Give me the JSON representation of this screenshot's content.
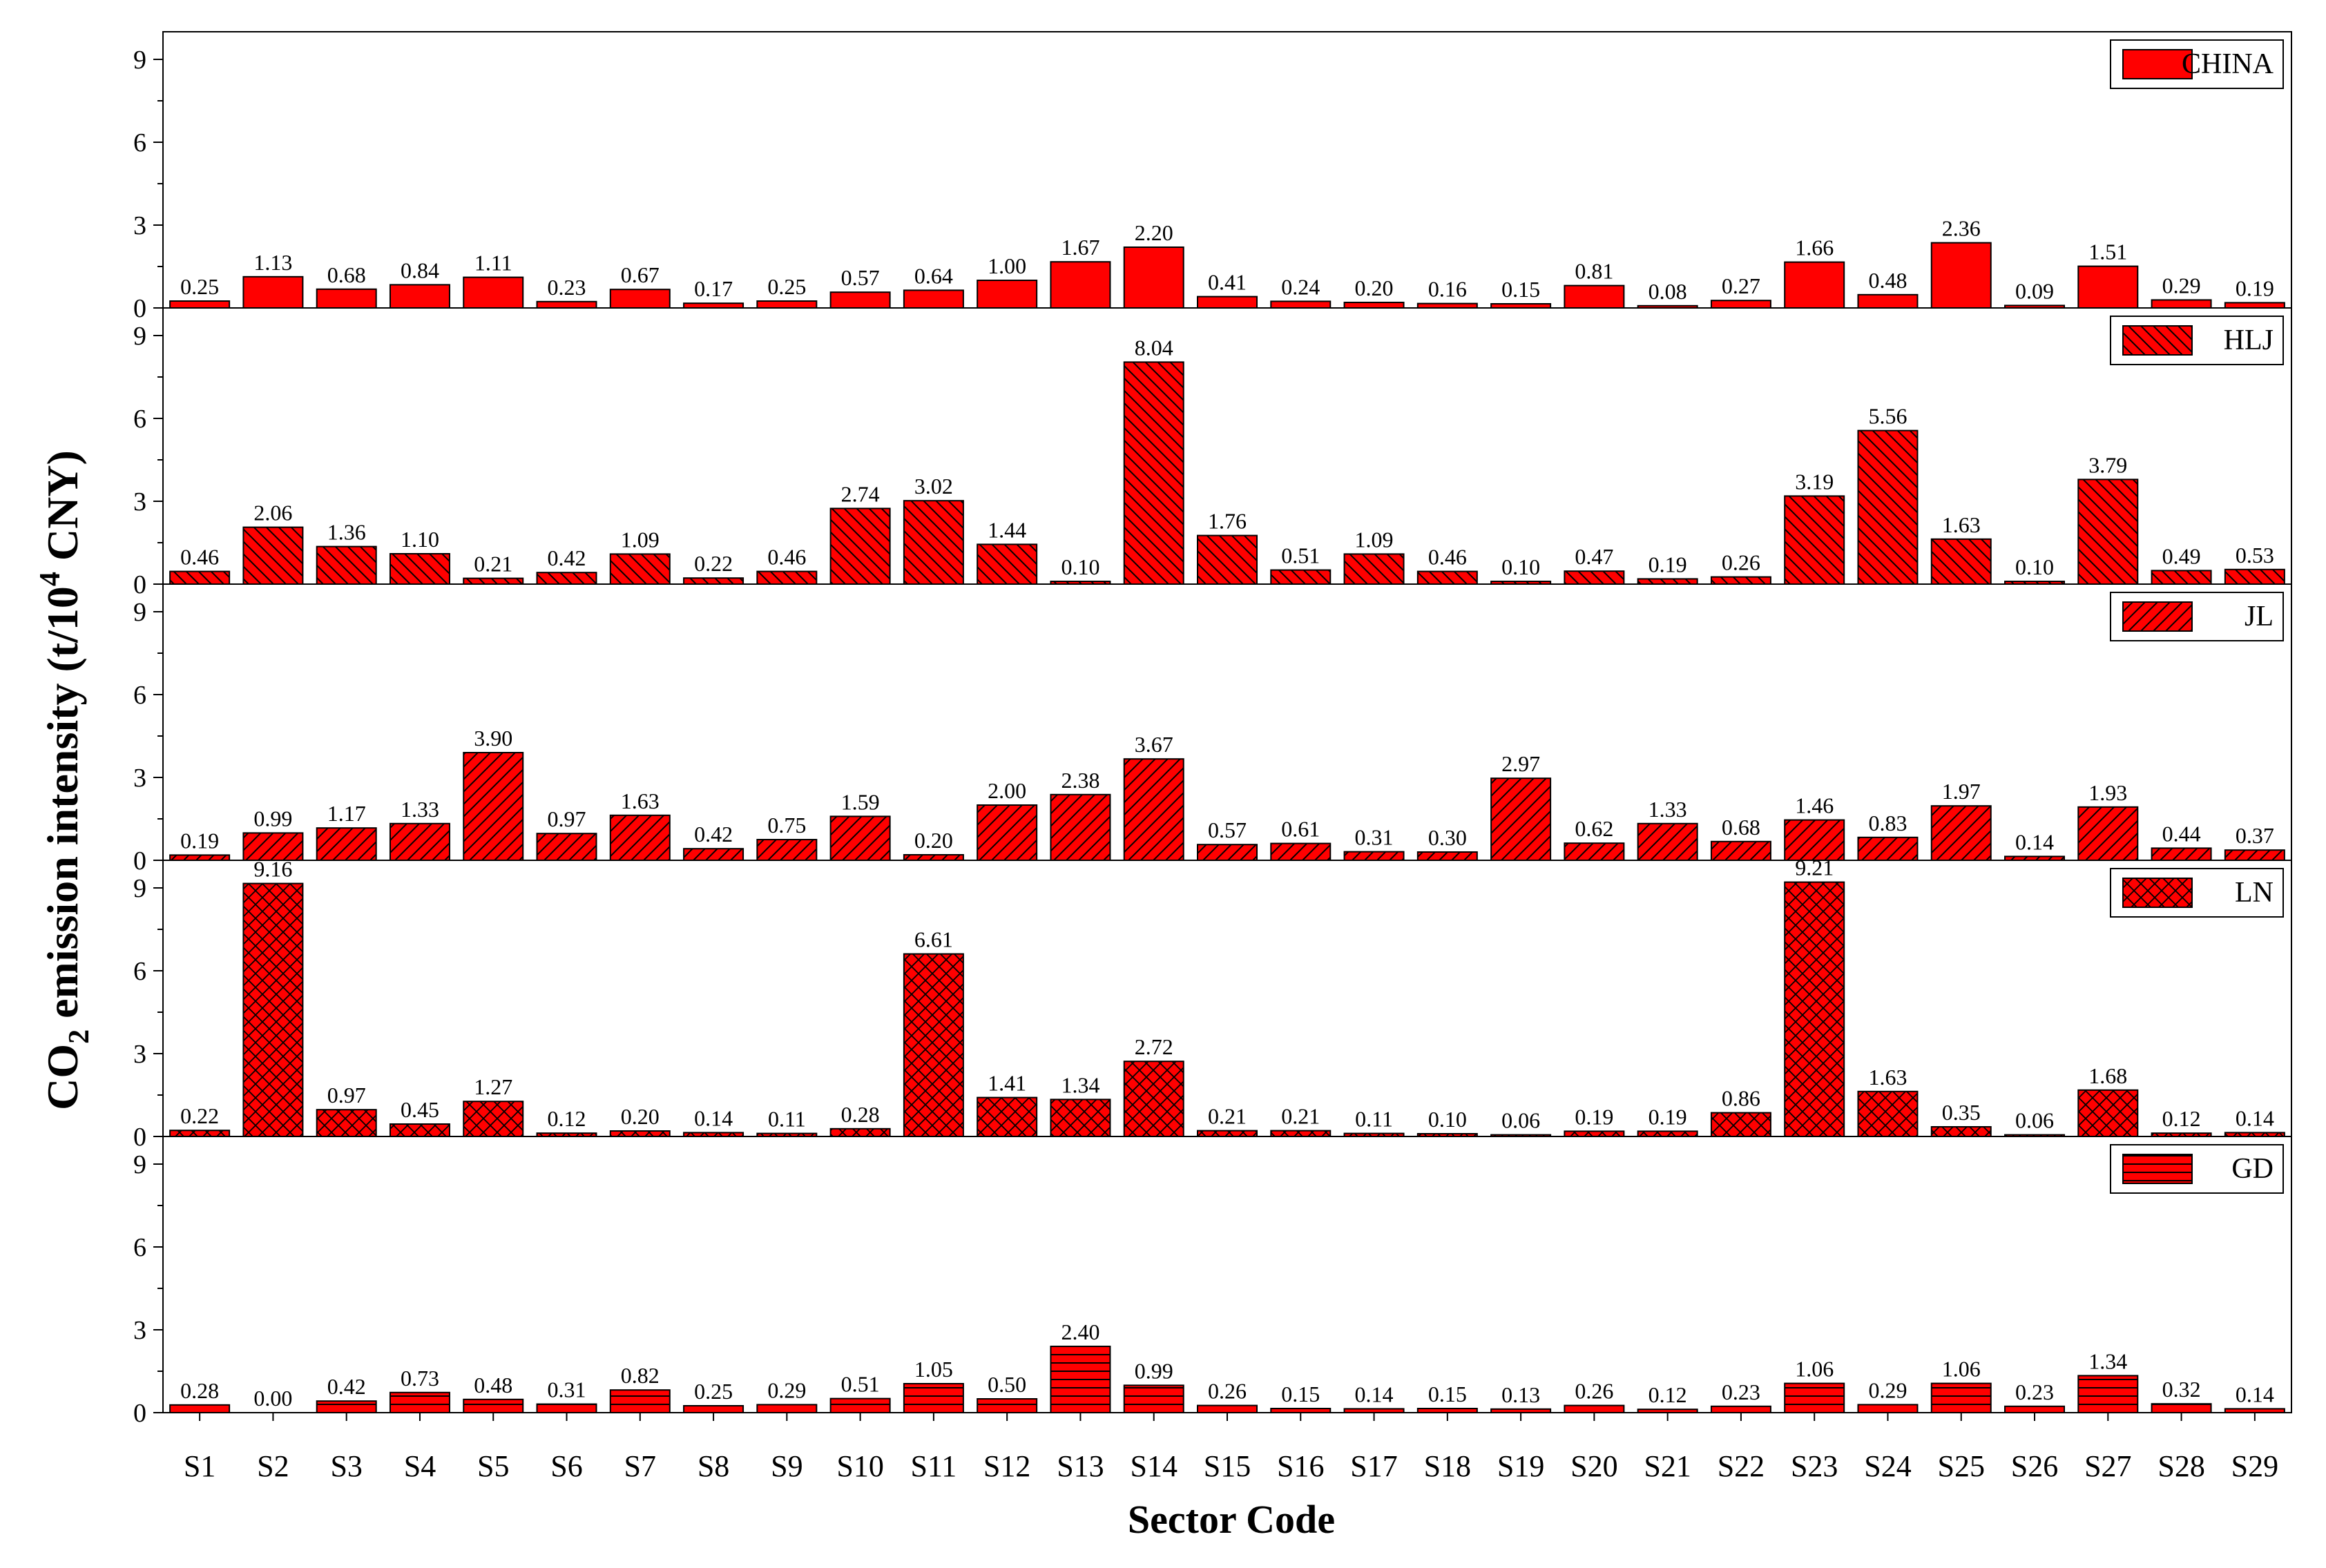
{
  "chart_data": {
    "type": "bar",
    "ylabel_main": "CO",
    "ylabel_sub": "2",
    "ylabel_mid": " emission intensity (t/10",
    "ylabel_sup": "4",
    "ylabel_end": " CNY)",
    "xlabel": "Sector Code",
    "ylim": [
      0,
      10
    ],
    "yticks": [
      "0",
      "3",
      "6",
      "9"
    ],
    "categories": [
      "S1",
      "S2",
      "S3",
      "S4",
      "S5",
      "S6",
      "S7",
      "S8",
      "S9",
      "S10",
      "S11",
      "S12",
      "S13",
      "S14",
      "S15",
      "S16",
      "S17",
      "S18",
      "S19",
      "S20",
      "S21",
      "S22",
      "S23",
      "S24",
      "S25",
      "S26",
      "S27",
      "S28",
      "S29"
    ],
    "bar_color": "#ff0000",
    "edge_color": "#000000",
    "series": [
      {
        "name": "CHINA",
        "pattern": "solid",
        "values": [
          0.25,
          1.13,
          0.68,
          0.84,
          1.11,
          0.23,
          0.67,
          0.17,
          0.25,
          0.57,
          0.64,
          1.0,
          1.67,
          2.2,
          0.41,
          0.24,
          0.2,
          0.16,
          0.15,
          0.81,
          0.08,
          0.27,
          1.66,
          0.48,
          2.36,
          0.09,
          1.51,
          0.29,
          0.19
        ],
        "labels": [
          "0.25",
          "1.13",
          "0.68",
          "0.84",
          "1.11",
          "0.23",
          "0.67",
          "0.17",
          "0.25",
          "0.57",
          "0.64",
          "1.00",
          "1.67",
          "2.20",
          "0.41",
          "0.24",
          "0.20",
          "0.16",
          "0.15",
          "0.81",
          "0.08",
          "0.27",
          "1.66",
          "0.48",
          "2.36",
          "0.09",
          "1.51",
          "0.29",
          "0.19"
        ]
      },
      {
        "name": "HLJ",
        "pattern": "diag-back",
        "values": [
          0.46,
          2.06,
          1.36,
          1.1,
          0.21,
          0.42,
          1.09,
          0.22,
          0.46,
          2.74,
          3.02,
          1.44,
          0.1,
          8.04,
          1.76,
          0.51,
          1.09,
          0.46,
          0.1,
          0.47,
          0.19,
          0.26,
          3.19,
          5.56,
          1.63,
          0.1,
          3.79,
          0.49,
          0.53
        ],
        "labels": [
          "0.46",
          "2.06",
          "1.36",
          "1.10",
          "0.21",
          "0.42",
          "1.09",
          "0.22",
          "0.46",
          "2.74",
          "3.02",
          "1.44",
          "0.10",
          "8.04",
          "1.76",
          "0.51",
          "1.09",
          "0.46",
          "0.10",
          "0.47",
          "0.19",
          "0.26",
          "3.19",
          "5.56",
          "1.63",
          "0.10",
          "3.79",
          "0.49",
          "0.53"
        ]
      },
      {
        "name": "JL",
        "pattern": "diag-fwd",
        "values": [
          0.19,
          0.99,
          1.17,
          1.33,
          3.9,
          0.97,
          1.63,
          0.42,
          0.75,
          1.59,
          0.2,
          2.0,
          2.38,
          3.67,
          0.57,
          0.61,
          0.31,
          0.3,
          2.97,
          0.62,
          1.33,
          0.68,
          1.46,
          0.83,
          1.97,
          0.14,
          1.93,
          0.44,
          0.37
        ],
        "labels": [
          "0.19",
          "0.99",
          "1.17",
          "1.33",
          "3.90",
          "0.97",
          "1.63",
          "0.42",
          "0.75",
          "1.59",
          "0.20",
          "2.00",
          "2.38",
          "3.67",
          "0.57",
          "0.61",
          "0.31",
          "0.30",
          "2.97",
          "0.62",
          "1.33",
          "0.68",
          "1.46",
          "0.83",
          "1.97",
          "0.14",
          "1.93",
          "0.44",
          "0.37"
        ]
      },
      {
        "name": "LN",
        "pattern": "cross",
        "values": [
          0.22,
          9.16,
          0.97,
          0.45,
          1.27,
          0.12,
          0.2,
          0.14,
          0.11,
          0.28,
          6.61,
          1.41,
          1.34,
          2.72,
          0.21,
          0.21,
          0.11,
          0.1,
          0.06,
          0.19,
          0.19,
          0.86,
          9.21,
          1.63,
          0.35,
          0.06,
          1.68,
          0.12,
          0.14
        ],
        "labels": [
          "0.22",
          "9.16",
          "0.97",
          "0.45",
          "1.27",
          "0.12",
          "0.20",
          "0.14",
          "0.11",
          "0.28",
          "6.61",
          "1.41",
          "1.34",
          "2.72",
          "0.21",
          "0.21",
          "0.11",
          "0.10",
          "0.06",
          "0.19",
          "0.19",
          "0.86",
          "9.21",
          "1.63",
          "0.35",
          "0.06",
          "1.68",
          "0.12",
          "0.14"
        ]
      },
      {
        "name": "GD",
        "pattern": "horiz",
        "values": [
          0.28,
          0.0,
          0.42,
          0.73,
          0.48,
          0.31,
          0.82,
          0.25,
          0.29,
          0.51,
          1.05,
          0.5,
          2.4,
          0.99,
          0.26,
          0.15,
          0.14,
          0.15,
          0.13,
          0.26,
          0.12,
          0.23,
          1.06,
          0.29,
          1.06,
          0.23,
          1.34,
          0.32,
          0.14
        ],
        "labels": [
          "0.28",
          "0.00",
          "0.42",
          "0.73",
          "0.48",
          "0.31",
          "0.82",
          "0.25",
          "0.29",
          "0.51",
          "1.05",
          "0.50",
          "2.40",
          "0.99",
          "0.26",
          "0.15",
          "0.14",
          "0.15",
          "0.13",
          "0.26",
          "0.12",
          "0.23",
          "1.06",
          "0.29",
          "1.06",
          "0.23",
          "1.34",
          "0.32",
          "0.14"
        ]
      }
    ],
    "grid": false,
    "legend_position": "top-right"
  }
}
